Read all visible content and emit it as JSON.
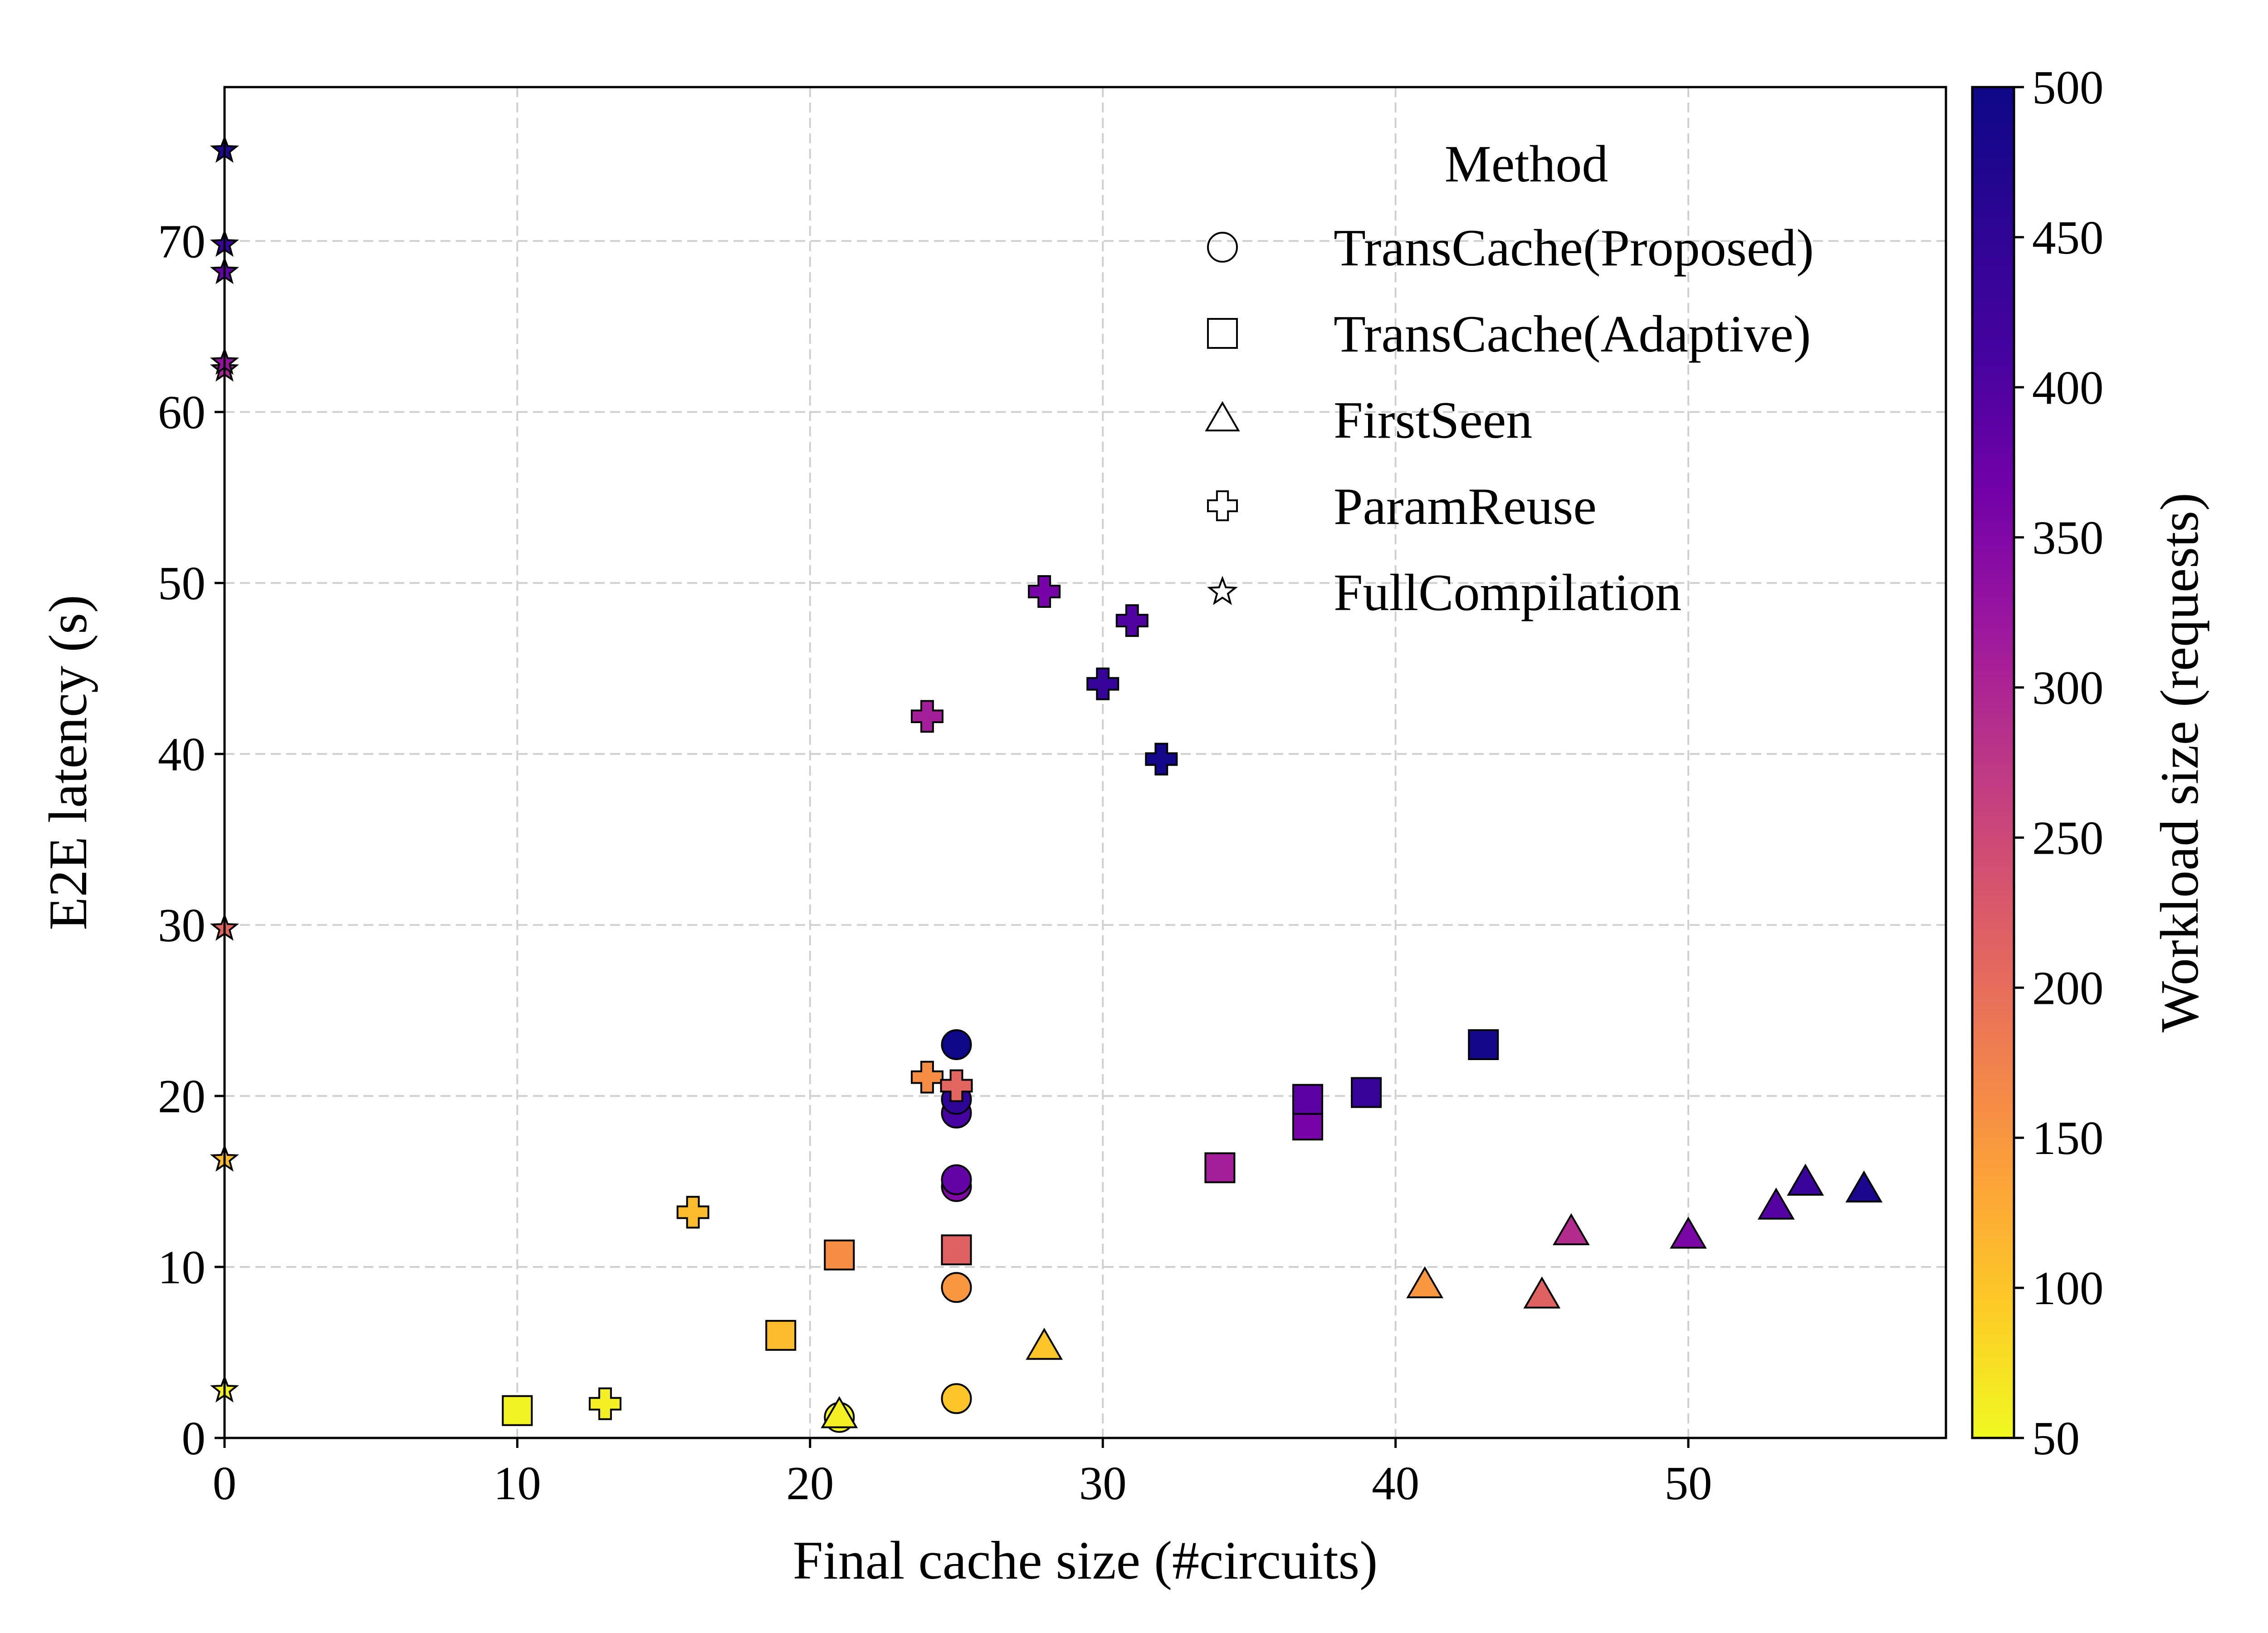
{
  "chart_data": {
    "type": "scatter",
    "xlabel": "Final cache size (#circuits)",
    "ylabel": "E2E latency (s)",
    "xlim": [
      0,
      58.8
    ],
    "ylim": [
      0,
      79
    ],
    "xticks": [
      0,
      10,
      20,
      30,
      40,
      50
    ],
    "yticks": [
      0,
      10,
      20,
      30,
      40,
      50,
      60,
      70
    ],
    "grid": true,
    "legend": {
      "title": "Method",
      "placement": "top-right"
    },
    "colorbar": {
      "label": "Workload size (requests)",
      "colormap": "plasma (reversed)",
      "range": [
        50,
        500
      ],
      "ticks": [
        50,
        100,
        150,
        200,
        250,
        300,
        350,
        400,
        450,
        500
      ]
    },
    "series": [
      {
        "name": "TransCache(Proposed)",
        "marker": "circle",
        "points": [
          {
            "x": 21,
            "y": 1.2,
            "workload": 50
          },
          {
            "x": 25,
            "y": 2.3,
            "workload": 100
          },
          {
            "x": 25,
            "y": 8.8,
            "workload": 150
          },
          {
            "x": 25,
            "y": 14.7,
            "workload": 350
          },
          {
            "x": 25,
            "y": 15.1,
            "workload": 380
          },
          {
            "x": 25,
            "y": 19.0,
            "workload": 410
          },
          {
            "x": 25,
            "y": 19.8,
            "workload": 450
          },
          {
            "x": 25,
            "y": 23.0,
            "workload": 500
          }
        ]
      },
      {
        "name": "TransCache(Adaptive)",
        "marker": "square",
        "points": [
          {
            "x": 10,
            "y": 1.6,
            "workload": 55
          },
          {
            "x": 19,
            "y": 6.0,
            "workload": 110
          },
          {
            "x": 21,
            "y": 10.7,
            "workload": 160
          },
          {
            "x": 25,
            "y": 11.0,
            "workload": 215
          },
          {
            "x": 34,
            "y": 15.8,
            "workload": 310
          },
          {
            "x": 37,
            "y": 18.3,
            "workload": 360
          },
          {
            "x": 37,
            "y": 19.8,
            "workload": 390
          },
          {
            "x": 39,
            "y": 20.2,
            "workload": 440
          },
          {
            "x": 43,
            "y": 23.0,
            "workload": 490
          }
        ]
      },
      {
        "name": "FirstSeen",
        "marker": "triangle",
        "points": [
          {
            "x": 21,
            "y": 1.3,
            "workload": 60
          },
          {
            "x": 28,
            "y": 5.3,
            "workload": 100
          },
          {
            "x": 41,
            "y": 8.9,
            "workload": 150
          },
          {
            "x": 45,
            "y": 8.3,
            "workload": 215
          },
          {
            "x": 46,
            "y": 12.0,
            "workload": 290
          },
          {
            "x": 50,
            "y": 11.8,
            "workload": 355
          },
          {
            "x": 53,
            "y": 13.5,
            "workload": 395
          },
          {
            "x": 54,
            "y": 14.9,
            "workload": 430
          },
          {
            "x": 56,
            "y": 14.5,
            "workload": 480
          }
        ]
      },
      {
        "name": "ParamReuse",
        "marker": "plus",
        "points": [
          {
            "x": 13,
            "y": 2.0,
            "workload": 60
          },
          {
            "x": 16,
            "y": 13.2,
            "workload": 110
          },
          {
            "x": 24,
            "y": 21.1,
            "workload": 160
          },
          {
            "x": 25,
            "y": 20.6,
            "workload": 210
          },
          {
            "x": 24,
            "y": 42.2,
            "workload": 310
          },
          {
            "x": 28,
            "y": 49.5,
            "workload": 360
          },
          {
            "x": 31,
            "y": 47.8,
            "workload": 400
          },
          {
            "x": 30,
            "y": 44.1,
            "workload": 440
          },
          {
            "x": 32,
            "y": 39.7,
            "workload": 490
          }
        ]
      },
      {
        "name": "FullCompilation",
        "marker": "star",
        "points": [
          {
            "x": 0,
            "y": 2.8,
            "workload": 60
          },
          {
            "x": 0,
            "y": 16.3,
            "workload": 110
          },
          {
            "x": 0,
            "y": 29.8,
            "workload": 210
          },
          {
            "x": 0,
            "y": 62.5,
            "workload": 300
          },
          {
            "x": 0,
            "y": 62.9,
            "workload": 330
          },
          {
            "x": 0,
            "y": 68.2,
            "workload": 380
          },
          {
            "x": 0,
            "y": 69.8,
            "workload": 430
          },
          {
            "x": 0,
            "y": 75.3,
            "workload": 470
          }
        ]
      }
    ]
  }
}
